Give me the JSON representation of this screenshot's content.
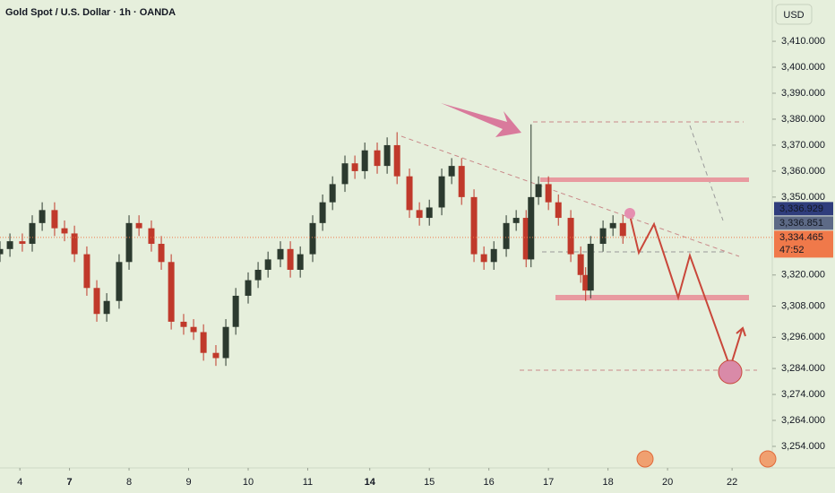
{
  "chart_data": {
    "type": "candlestick",
    "title": "Gold Spot / U.S. Dollar · 1h · OANDA",
    "currency": "USD",
    "up_color": "#2c3a2f",
    "down_color": "#c0392b",
    "x": [
      0,
      4,
      9,
      13,
      17,
      22,
      26,
      30,
      35,
      39,
      43,
      48,
      52,
      56,
      61,
      65,
      69,
      74,
      78,
      82,
      87,
      91,
      95,
      100,
      104,
      108,
      113,
      117,
      121,
      126,
      130,
      134,
      139,
      143,
      147,
      152,
      156,
      160,
      165,
      169,
      173,
      178,
      182,
      186,
      191,
      195,
      199,
      204,
      208,
      212,
      214,
      217,
      221,
      225,
      230,
      234,
      236,
      238,
      243,
      247,
      251
    ],
    "open": [
      3328,
      3330,
      3333,
      3332,
      3340,
      3345,
      3338,
      3336,
      3328,
      3315,
      3305,
      3310,
      3325,
      3340,
      3338,
      3332,
      3325,
      3302,
      3300,
      3298,
      3290,
      3288,
      3300,
      3312,
      3318,
      3322,
      3326,
      3330,
      3322,
      3328,
      3340,
      3348,
      3355,
      3363,
      3360,
      3368,
      3362,
      3370,
      3358,
      3345,
      3342,
      3346,
      3358,
      3362,
      3350,
      3328,
      3325,
      3330,
      3340,
      3342,
      3326,
      3350,
      3355,
      3348,
      3342,
      3328,
      3320,
      3314,
      3332,
      3338,
      3340
    ],
    "high": [
      3333,
      3336,
      3336,
      3343,
      3348,
      3348,
      3341,
      3339,
      3331,
      3318,
      3313,
      3328,
      3343,
      3343,
      3341,
      3335,
      3328,
      3305,
      3303,
      3301,
      3293,
      3303,
      3315,
      3321,
      3325,
      3329,
      3333,
      3333,
      3331,
      3343,
      3351,
      3358,
      3366,
      3366,
      3371,
      3371,
      3373,
      3375,
      3361,
      3348,
      3349,
      3361,
      3365,
      3365,
      3353,
      3331,
      3333,
      3343,
      3345,
      3345,
      3378,
      3358,
      3358,
      3351,
      3345,
      3331,
      3323,
      3335,
      3341,
      3343,
      3343
    ],
    "low": [
      3325,
      3327,
      3329,
      3329,
      3337,
      3335,
      3333,
      3325,
      3312,
      3302,
      3302,
      3307,
      3322,
      3335,
      3329,
      3322,
      3299,
      3297,
      3295,
      3287,
      3285,
      3285,
      3297,
      3309,
      3315,
      3319,
      3323,
      3319,
      3319,
      3325,
      3337,
      3345,
      3352,
      3357,
      3357,
      3359,
      3359,
      3355,
      3342,
      3339,
      3339,
      3343,
      3355,
      3347,
      3325,
      3322,
      3322,
      3327,
      3337,
      3323,
      3323,
      3347,
      3345,
      3339,
      3325,
      3317,
      3310,
      3311,
      3329,
      3335,
      3332
    ],
    "close": [
      3330,
      3333,
      3332,
      3340,
      3345,
      3338,
      3336,
      3328,
      3315,
      3305,
      3310,
      3325,
      3340,
      3338,
      3332,
      3325,
      3302,
      3300,
      3298,
      3290,
      3288,
      3300,
      3312,
      3318,
      3322,
      3326,
      3330,
      3322,
      3328,
      3340,
      3348,
      3355,
      3363,
      3360,
      3368,
      3362,
      3370,
      3358,
      3345,
      3342,
      3346,
      3358,
      3362,
      3350,
      3328,
      3325,
      3330,
      3340,
      3342,
      3326,
      3350,
      3355,
      3348,
      3342,
      3328,
      3320,
      3314,
      3332,
      3338,
      3340,
      3335
    ],
    "xlim": [
      0,
      311.2
    ],
    "ylim": [
      3246.4,
      3425.9
    ],
    "xticks": [
      {
        "value": 8,
        "label": "4"
      },
      {
        "value": 28,
        "label": "7",
        "bold": true
      },
      {
        "value": 52,
        "label": "8"
      },
      {
        "value": 76,
        "label": "9"
      },
      {
        "value": 100,
        "label": "10"
      },
      {
        "value": 124,
        "label": "11"
      },
      {
        "value": 149,
        "label": "14",
        "bold": true
      },
      {
        "value": 173,
        "label": "15"
      },
      {
        "value": 197,
        "label": "16"
      },
      {
        "value": 221,
        "label": "17"
      },
      {
        "value": 245,
        "label": "18"
      },
      {
        "value": 269,
        "label": "20"
      },
      {
        "value": 295,
        "label": "22"
      }
    ],
    "yticks": [
      {
        "value": 3410,
        "label": "3,410.000"
      },
      {
        "value": 3400,
        "label": "3,400.000"
      },
      {
        "value": 3390,
        "label": "3,390.000"
      },
      {
        "value": 3380,
        "label": "3,380.000"
      },
      {
        "value": 3370,
        "label": "3,370.000"
      },
      {
        "value": 3360,
        "label": "3,360.000"
      },
      {
        "value": 3350,
        "label": "3,350.000"
      },
      {
        "value": 3320,
        "label": "3,320.000"
      },
      {
        "value": 3308,
        "label": "3,308.000"
      },
      {
        "value": 3296,
        "label": "3,296.000"
      },
      {
        "value": 3284,
        "label": "3,284.000"
      },
      {
        "value": 3274,
        "label": "3,274.000"
      },
      {
        "value": 3264,
        "label": "3,264.000"
      },
      {
        "value": 3254,
        "label": "3,254.000"
      }
    ],
    "price_tags": [
      {
        "value": 3336.929,
        "label": "3,336.929",
        "color": "#2f3d7c"
      },
      {
        "value": 3336.851,
        "label": "3,336.851",
        "color": "#5d6a86"
      },
      {
        "value": 3334.465,
        "label": "3,334.465",
        "color": "#f0794a",
        "timer": "47:52"
      }
    ]
  }
}
